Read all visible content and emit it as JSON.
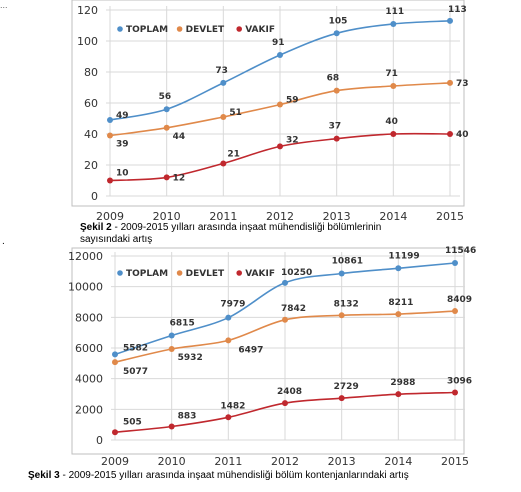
{
  "page": {
    "top_fragment": "...",
    "bullet": "."
  },
  "colors": {
    "toplam": "#4f8fc9",
    "devlet": "#e0894a",
    "vakif": "#c0282e",
    "grid": "#d9d9d9",
    "frame": "#bfbfbf"
  },
  "captions": [
    {
      "prefix": "Şekil 2",
      "text": " - 2009-2015 yılları arasında inşaat mühendisliği bölümlerinin",
      "line2": "sayısındaki artış"
    },
    {
      "prefix": "Şekil 3",
      "text": " - 2009-2015 yılları arasında inşaat mühendisliği bölüm kontenjanlarındaki artış",
      "line2": ""
    }
  ],
  "chart_data": [
    {
      "type": "line",
      "title": "",
      "xlabel": "",
      "ylabel": "",
      "x": [
        "2009",
        "2010",
        "2011",
        "2012",
        "2013",
        "2014",
        "2015"
      ],
      "ylim": [
        0,
        120
      ],
      "yticks": [
        0,
        20,
        40,
        60,
        80,
        100,
        120
      ],
      "grid": true,
      "legend": "top-left",
      "series": [
        {
          "name": "TOPLAM",
          "color": "#4f8fc9",
          "values": [
            49,
            56,
            73,
            91,
            105,
            111,
            113
          ]
        },
        {
          "name": "DEVLET",
          "color": "#e0894a",
          "values": [
            39,
            44,
            51,
            59,
            68,
            71,
            73
          ]
        },
        {
          "name": "VAKIF",
          "color": "#c0282e",
          "values": [
            10,
            12,
            21,
            32,
            37,
            40,
            40
          ]
        }
      ]
    },
    {
      "type": "line",
      "title": "",
      "xlabel": "",
      "ylabel": "",
      "x": [
        "2009",
        "2010",
        "2011",
        "2012",
        "2013",
        "2014",
        "2015"
      ],
      "ylim": [
        0,
        12000
      ],
      "yticks": [
        0,
        2000,
        4000,
        6000,
        8000,
        10000,
        12000
      ],
      "grid": true,
      "legend": "top-left",
      "series": [
        {
          "name": "TOPLAM",
          "color": "#4f8fc9",
          "values": [
            5582,
            6815,
            7979,
            10250,
            10861,
            11199,
            11546
          ]
        },
        {
          "name": "DEVLET",
          "color": "#e0894a",
          "values": [
            5077,
            5932,
            6497,
            7842,
            8132,
            8211,
            8409
          ]
        },
        {
          "name": "VAKIF",
          "color": "#c0282e",
          "values": [
            505,
            883,
            1482,
            2408,
            2729,
            2988,
            3096
          ]
        }
      ]
    }
  ]
}
